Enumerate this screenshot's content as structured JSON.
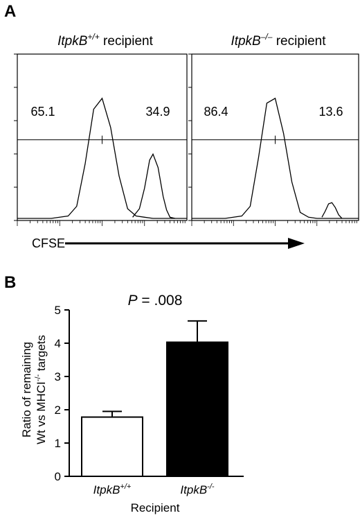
{
  "panel_labels": {
    "a": "A",
    "b": "B"
  },
  "panel_a": {
    "axis_label": "CFSE",
    "plots": [
      {
        "title_gene": "ItpkB",
        "title_sup": "+/+",
        "title_rest": " recipient",
        "left_value": "65.1",
        "right_value": "34.9"
      },
      {
        "title_gene": "ItpkB",
        "title_sup": "–/–",
        "title_rest": " recipient",
        "left_value": "86.4",
        "right_value": "13.6"
      }
    ]
  },
  "panel_b": {
    "p_label": "P",
    "p_value": " = .008",
    "ylabel_line1": "Ratio of remaining",
    "ylabel_line2_a": "Wt vs MHCI",
    "ylabel_line2_sup": "-/-",
    "ylabel_line2_b": " targets",
    "xlabel": "Recipient",
    "categories": [
      {
        "gene": "ItpkB",
        "sup": "+/+"
      },
      {
        "gene": "ItpkB",
        "sup": "-/-"
      }
    ],
    "yticks": [
      "0",
      "1",
      "2",
      "3",
      "4",
      "5"
    ]
  },
  "chart_data": [
    {
      "type": "line",
      "title": "ItpkB+/+ recipient",
      "xlabel": "CFSE",
      "gate_percentages": {
        "left": 65.1,
        "right": 34.9
      },
      "x_log_scale": true,
      "series": [
        {
          "x": [
            0.0,
            0.2,
            0.3,
            0.35,
            0.4,
            0.45,
            0.5,
            0.55,
            0.6,
            0.65,
            0.7,
            0.75,
            0.8,
            1.0
          ],
          "values": [
            0,
            0,
            0.02,
            0.1,
            0.45,
            0.9,
            0.99,
            0.75,
            0.35,
            0.08,
            0.02,
            0.01,
            0,
            0
          ]
        },
        {
          "x": [
            0.68,
            0.72,
            0.75,
            0.78,
            0.8,
            0.83,
            0.86,
            0.88,
            0.9,
            0.93
          ],
          "values": [
            0.01,
            0.08,
            0.25,
            0.48,
            0.53,
            0.42,
            0.18,
            0.07,
            0.01,
            0
          ]
        }
      ]
    },
    {
      "type": "line",
      "title": "ItpkB–/– recipient",
      "xlabel": "CFSE",
      "gate_percentages": {
        "left": 86.4,
        "right": 13.6
      },
      "x_log_scale": true,
      "series": [
        {
          "x": [
            0.0,
            0.2,
            0.3,
            0.35,
            0.4,
            0.45,
            0.5,
            0.55,
            0.6,
            0.65,
            0.7,
            0.75,
            0.8,
            1.0
          ],
          "values": [
            0,
            0,
            0.02,
            0.1,
            0.5,
            0.95,
            0.99,
            0.7,
            0.3,
            0.05,
            0.01,
            0,
            0,
            0
          ]
        },
        {
          "x": [
            0.78,
            0.8,
            0.82,
            0.84,
            0.86,
            0.88,
            0.9
          ],
          "values": [
            0.01,
            0.06,
            0.12,
            0.13,
            0.09,
            0.03,
            0
          ]
        }
      ]
    },
    {
      "type": "bar",
      "categories": [
        "ItpkB+/+",
        "ItpkB-/-"
      ],
      "values": [
        1.78,
        4.03
      ],
      "errors": [
        0.17,
        0.64
      ],
      "colors": [
        "#ffffff",
        "#000000"
      ],
      "ylabel": "Ratio of remaining Wt vs MHCI-/- targets",
      "xlabel": "Recipient",
      "ylim": [
        0,
        5
      ],
      "annotation": "P = .008"
    }
  ]
}
